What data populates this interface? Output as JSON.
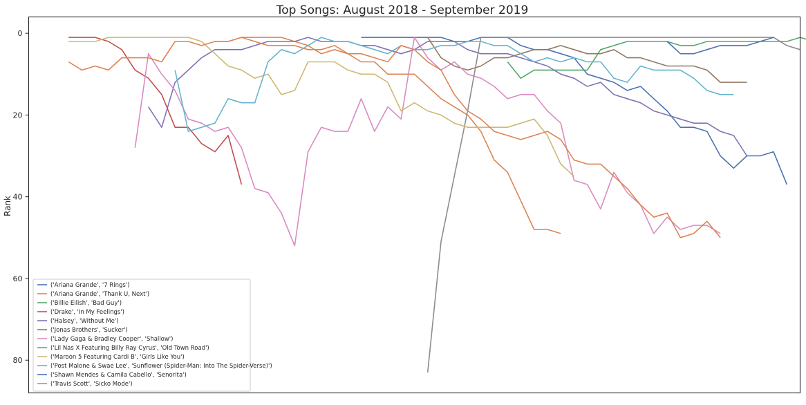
{
  "chart_data": {
    "type": "line",
    "title": "Top Songs: August 2018 - September 2019",
    "xlabel": "",
    "ylabel": "Rank",
    "ylim": [
      88,
      -4
    ],
    "xlim": [
      -3,
      55
    ],
    "y_ticks": [
      0,
      20,
      40,
      60,
      80
    ],
    "x_ticks": [],
    "legend_position": "bottom-left",
    "grid": false,
    "series": [
      {
        "name": "('Ariana Grande', '7 Rings')",
        "color": "#4c72b0",
        "start": 22,
        "values": [
          1,
          1,
          1,
          1,
          1,
          1,
          1,
          2,
          2,
          1,
          1,
          1,
          3,
          4,
          4,
          5,
          6,
          10,
          11,
          12,
          14,
          13,
          16,
          19,
          23,
          23,
          24,
          30,
          33,
          30,
          30,
          29,
          37
        ]
      },
      {
        "name": "('Ariana Grande', 'Thank U, Next')",
        "color": "#dd8452",
        "start": 11,
        "values": [
          2,
          2,
          1,
          1,
          1,
          1,
          2,
          3,
          5,
          4,
          5,
          7,
          7,
          10,
          10,
          10,
          13,
          16,
          18,
          20,
          24,
          31,
          34,
          41,
          48,
          48,
          49
        ]
      },
      {
        "name": "('Billie Eilish', 'Bad Guy')",
        "color": "#55a868",
        "start": 33,
        "values": [
          7,
          11,
          9,
          9,
          9,
          9,
          9,
          4,
          3,
          2,
          2,
          2,
          2,
          3,
          3,
          2,
          2,
          2,
          2,
          2,
          2,
          2,
          1,
          2
        ]
      },
      {
        "name": "('Drake', 'In My Feelings')",
        "color": "#c44e52",
        "start": 0,
        "values": [
          1,
          1,
          1,
          2,
          4,
          9,
          11,
          15,
          23,
          23,
          27,
          29,
          25,
          37
        ]
      },
      {
        "name": "('Halsey', 'Without Me')",
        "color": "#8172b3",
        "start": 6,
        "values": [
          18,
          23,
          12,
          9,
          6,
          4,
          4,
          4,
          3,
          2,
          2,
          2,
          1,
          2,
          2,
          2,
          3,
          3,
          4,
          5,
          4,
          2,
          2,
          2,
          4,
          5,
          5,
          5,
          6,
          7,
          8,
          10,
          11,
          13,
          12,
          15,
          16,
          17,
          19,
          20,
          21,
          22,
          22,
          24,
          25,
          30
        ]
      },
      {
        "name": "('Jonas Brothers', 'Sucker')",
        "color": "#937860",
        "start": 27,
        "values": [
          1,
          6,
          8,
          9,
          8,
          6,
          6,
          5,
          4,
          4,
          3,
          4,
          5,
          5,
          4,
          6,
          6,
          7,
          8,
          8,
          8,
          9,
          12,
          12,
          12
        ]
      },
      {
        "name": "('Lady Gaga & Bradley Cooper', 'Shallow')",
        "color": "#da8bc3",
        "start": 5,
        "values": [
          28,
          5,
          10,
          14,
          21,
          22,
          24,
          23,
          28,
          38,
          39,
          44,
          52,
          29,
          23,
          24,
          24,
          16,
          24,
          18,
          21,
          1,
          6,
          9,
          7,
          10,
          11,
          13,
          16,
          15,
          15,
          19,
          22,
          36,
          37,
          43,
          34,
          39,
          42,
          49,
          45,
          48,
          47,
          47,
          49
        ]
      },
      {
        "name": "('Lil Nas X Featuring Billy Ray Cyrus', 'Old Town Road')",
        "color": "#8c8c8c",
        "start": 27,
        "values": [
          83,
          51,
          35,
          19,
          1,
          1,
          1,
          1,
          1,
          1,
          1,
          1,
          1,
          1,
          1,
          1,
          1,
          1,
          1,
          1,
          1,
          1,
          1,
          1,
          1,
          1,
          1,
          3,
          4
        ]
      },
      {
        "name": "('Maroon 5 Featuring Cardi B', 'Girls Like You')",
        "color": "#ccb974",
        "start": 0,
        "values": [
          2,
          2,
          2,
          1,
          1,
          1,
          1,
          1,
          1,
          1,
          2,
          5,
          8,
          9,
          11,
          10,
          15,
          14,
          7,
          7,
          7,
          9,
          10,
          10,
          12,
          19,
          17,
          19,
          20,
          22,
          23,
          23,
          23,
          23,
          22,
          21,
          25,
          32,
          35
        ]
      },
      {
        "name": "('Post Malone & Swae Lee', 'Sunflower (Spider-Man: Into The Spider-Verse)')",
        "color": "#64b5cd",
        "start": 8,
        "values": [
          9,
          24,
          23,
          22,
          16,
          17,
          17,
          7,
          4,
          5,
          3,
          1,
          2,
          2,
          3,
          4,
          5,
          3,
          4,
          4,
          3,
          3,
          2,
          2,
          3,
          3,
          5,
          7,
          6,
          7,
          6,
          7,
          7,
          11,
          12,
          8,
          9,
          9,
          9,
          11,
          14,
          15,
          15
        ]
      },
      {
        "name": "('Shawn Mendes & Camila Cabello', 'Senorita')",
        "color": "#4c72b0",
        "start": 45,
        "values": [
          2,
          5,
          5,
          4,
          3,
          3,
          3,
          2,
          1
        ]
      },
      {
        "name": "('Travis Scott', 'Sicko Mode')",
        "color": "#dd8452",
        "start": 0,
        "values": [
          7,
          9,
          8,
          9,
          6,
          6,
          6,
          7,
          2,
          2,
          3,
          2,
          2,
          1,
          2,
          3,
          3,
          3,
          4,
          4,
          3,
          5,
          5,
          6,
          7,
          3,
          4,
          7,
          9,
          15,
          19,
          21,
          24,
          25,
          26,
          25,
          24,
          26,
          31,
          32,
          32,
          35,
          38,
          42,
          45,
          44,
          50,
          49,
          46,
          50
        ]
      }
    ]
  }
}
